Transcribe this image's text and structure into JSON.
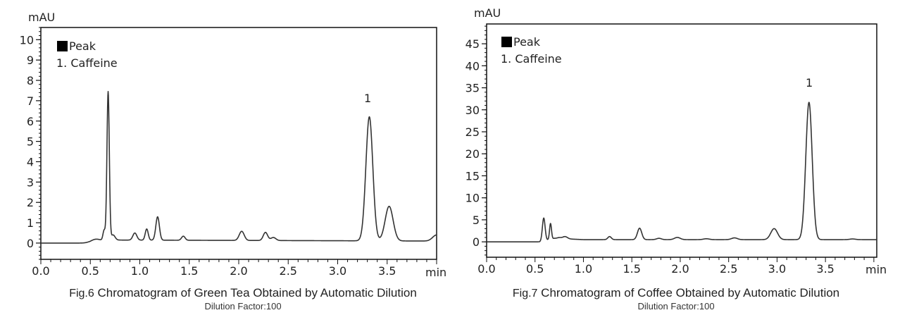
{
  "chart_data": [
    {
      "type": "line",
      "title": "Fig.6 Chromatogram of Green Tea Obtained by Automatic Dilution",
      "subtitle": "Dilution Factor:100",
      "xlabel": "min",
      "ylabel": "mAU",
      "xlim": [
        0.0,
        4.0
      ],
      "ylim": [
        -0.8,
        10.6
      ],
      "xticks": [
        "0.0",
        "0.5",
        "1.0",
        "1.5",
        "2.0",
        "2.5",
        "3.0",
        "3.5"
      ],
      "yticks": [
        "0",
        "1",
        "2",
        "3",
        "4",
        "5",
        "6",
        "7",
        "8",
        "9",
        "10"
      ],
      "grid": false,
      "legend": {
        "position": "top-left",
        "title": "Peak",
        "entries": [
          "1. Caffeine"
        ]
      },
      "annotations": [
        {
          "label": "1",
          "x": 3.32,
          "y": 6.6
        }
      ],
      "peaks": [
        {
          "rt": 0.55,
          "height": 0.15,
          "width": 0.05
        },
        {
          "rt": 0.64,
          "height": 0.5,
          "width": 0.012
        },
        {
          "rt": 0.68,
          "height": 7.3,
          "width": 0.012
        },
        {
          "rt": 0.73,
          "height": 0.25,
          "width": 0.02
        },
        {
          "rt": 0.95,
          "height": 0.35,
          "width": 0.02
        },
        {
          "rt": 1.07,
          "height": 0.55,
          "width": 0.015
        },
        {
          "rt": 1.18,
          "height": 1.15,
          "width": 0.018
        },
        {
          "rt": 1.44,
          "height": 0.2,
          "width": 0.018
        },
        {
          "rt": 2.03,
          "height": 0.45,
          "width": 0.025
        },
        {
          "rt": 2.27,
          "height": 0.4,
          "width": 0.022
        },
        {
          "rt": 2.35,
          "height": 0.15,
          "width": 0.025
        },
        {
          "rt": 3.32,
          "height": 6.1,
          "width": 0.035
        },
        {
          "rt": 3.52,
          "height": 1.7,
          "width": 0.04
        },
        {
          "rt": 4.0,
          "height": 0.3,
          "width": 0.04
        }
      ],
      "baseline_offset": [
        [
          0.0,
          0.0
        ],
        [
          0.5,
          0.0
        ],
        [
          0.7,
          0.15
        ],
        [
          4.0,
          0.1
        ]
      ],
      "series": [
        {
          "name": "Green Tea",
          "color": "#333333"
        }
      ]
    },
    {
      "type": "line",
      "title": "Fig.7 Chromatogram of Coffee Obtained by Automatic Dilution",
      "subtitle": "Dilution Factor:100",
      "xlabel": "min",
      "ylabel": "mAU",
      "xlim": [
        0.0,
        4.03
      ],
      "ylim": [
        -3.5,
        49.5
      ],
      "xticks": [
        "0.0",
        "0.5",
        "1.0",
        "1.5",
        "2.0",
        "2.5",
        "3.0",
        "3.5"
      ],
      "yticks": [
        "0",
        "5",
        "10",
        "15",
        "20",
        "25",
        "30",
        "35",
        "40",
        "45"
      ],
      "grid": false,
      "legend": {
        "position": "top-left",
        "title": "Peak",
        "entries": [
          "1. Caffeine"
        ]
      },
      "annotations": [
        {
          "label": "1",
          "x": 3.33,
          "y": 36.5
        }
      ],
      "peaks": [
        {
          "rt": 0.59,
          "height": 5.2,
          "width": 0.014
        },
        {
          "rt": 0.66,
          "height": 3.6,
          "width": 0.01
        },
        {
          "rt": 0.75,
          "height": 0.2,
          "width": 0.02
        },
        {
          "rt": 0.81,
          "height": 0.5,
          "width": 0.025
        },
        {
          "rt": 1.27,
          "height": 0.7,
          "width": 0.018
        },
        {
          "rt": 1.58,
          "height": 2.6,
          "width": 0.022
        },
        {
          "rt": 1.78,
          "height": 0.3,
          "width": 0.025
        },
        {
          "rt": 1.97,
          "height": 0.5,
          "width": 0.03
        },
        {
          "rt": 2.27,
          "height": 0.2,
          "width": 0.03
        },
        {
          "rt": 2.56,
          "height": 0.4,
          "width": 0.03
        },
        {
          "rt": 2.97,
          "height": 2.5,
          "width": 0.035
        },
        {
          "rt": 3.33,
          "height": 31.2,
          "width": 0.033
        },
        {
          "rt": 3.78,
          "height": 0.15,
          "width": 0.03
        }
      ],
      "baseline_offset": [
        [
          0.0,
          0.0
        ],
        [
          0.55,
          0.0
        ],
        [
          0.7,
          0.8
        ],
        [
          1.0,
          0.5
        ],
        [
          4.03,
          0.5
        ]
      ],
      "series": [
        {
          "name": "Coffee",
          "color": "#333333"
        }
      ]
    }
  ],
  "figures": [
    {
      "ylabel": "mAU",
      "xunit": "min",
      "legend_title": "Peak",
      "legend_entry": "1. Caffeine",
      "peak_label": "1",
      "caption_fig": "Fig.6",
      "caption_text": "Chromatogram of Green Tea Obtained by Automatic Dilution",
      "caption_sub": "Dilution Factor:100"
    },
    {
      "ylabel": "mAU",
      "xunit": "min",
      "legend_title": "Peak",
      "legend_entry": "1. Caffeine",
      "peak_label": "1",
      "caption_fig": "Fig.7",
      "caption_text": "Chromatogram of Coffee Obtained by Automatic Dilution",
      "caption_sub": "Dilution Factor:100"
    }
  ],
  "colors": {
    "trace": "#333333",
    "axis": "#111111",
    "text": "#222222"
  }
}
